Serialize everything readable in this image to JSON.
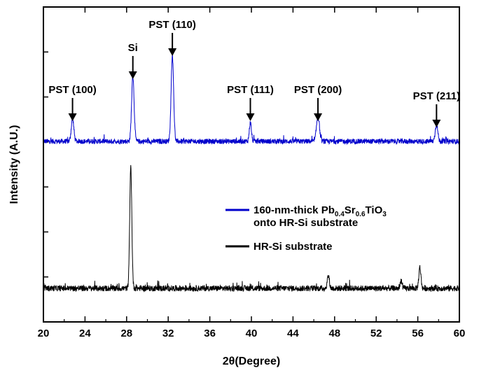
{
  "chart_data": {
    "type": "line",
    "title": "",
    "xlabel": "2θ(Degree)",
    "ylabel": "Intensity (A.U.)",
    "xlim": [
      20,
      60
    ],
    "xticks": [
      "20",
      "24",
      "28",
      "32",
      "36",
      "40",
      "44",
      "48",
      "52",
      "56",
      "60"
    ],
    "y_tick_labels": false,
    "grid": false,
    "legend": {
      "placement": "center-right",
      "entries": [
        {
          "line1_parts": [
            {
              "t": "160-nm-thick Pb",
              "sub": false
            },
            {
              "t": "0.4",
              "sub": true
            },
            {
              "t": "Sr",
              "sub": false
            },
            {
              "t": "0.6",
              "sub": true
            },
            {
              "t": "TiO",
              "sub": false
            },
            {
              "t": "3",
              "sub": true
            }
          ],
          "line2": "onto HR-Si substrate",
          "color": "#0000cc"
        },
        {
          "line1_parts": [
            {
              "t": "HR-Si substrate",
              "sub": false
            }
          ],
          "line2": "",
          "color": "#000000"
        }
      ]
    },
    "series": [
      {
        "name": "160-nm-thick Pb0.4Sr0.6TiO3 onto HR-Si substrate",
        "color": "#0000cc",
        "baseline": 1.0,
        "noise": 0.06,
        "peaks": [
          {
            "x": 22.8,
            "h": 0.55,
            "w": 0.12
          },
          {
            "x": 28.6,
            "h": 1.55,
            "w": 0.12
          },
          {
            "x": 32.4,
            "h": 2.05,
            "w": 0.12
          },
          {
            "x": 39.9,
            "h": 0.45,
            "w": 0.1
          },
          {
            "x": 46.4,
            "h": 0.6,
            "w": 0.14
          },
          {
            "x": 57.8,
            "h": 0.4,
            "w": 0.12
          }
        ]
      },
      {
        "name": "HR-Si substrate",
        "color": "#000000",
        "baseline": -2.5,
        "noise": 0.07,
        "peaks": [
          {
            "x": 28.4,
            "h": 2.9,
            "w": 0.1
          },
          {
            "x": 47.4,
            "h": 0.3,
            "w": 0.1
          },
          {
            "x": 54.4,
            "h": 0.2,
            "w": 0.08
          },
          {
            "x": 56.2,
            "h": 0.5,
            "w": 0.1
          }
        ]
      }
    ],
    "ylim": [
      -3.3,
      4.2
    ],
    "annotations": [
      {
        "label": "PST (100)",
        "x": 22.8,
        "y": 2.15
      },
      {
        "label": "Si",
        "x": 28.6,
        "y": 3.15
      },
      {
        "label": "PST (110)",
        "x": 32.4,
        "y": 3.7
      },
      {
        "label": "PST (111)",
        "x": 39.9,
        "y": 2.15
      },
      {
        "label": "PST (200)",
        "x": 46.4,
        "y": 2.15
      },
      {
        "label": "PST (211)",
        "x": 57.8,
        "y": 2.0
      }
    ]
  }
}
